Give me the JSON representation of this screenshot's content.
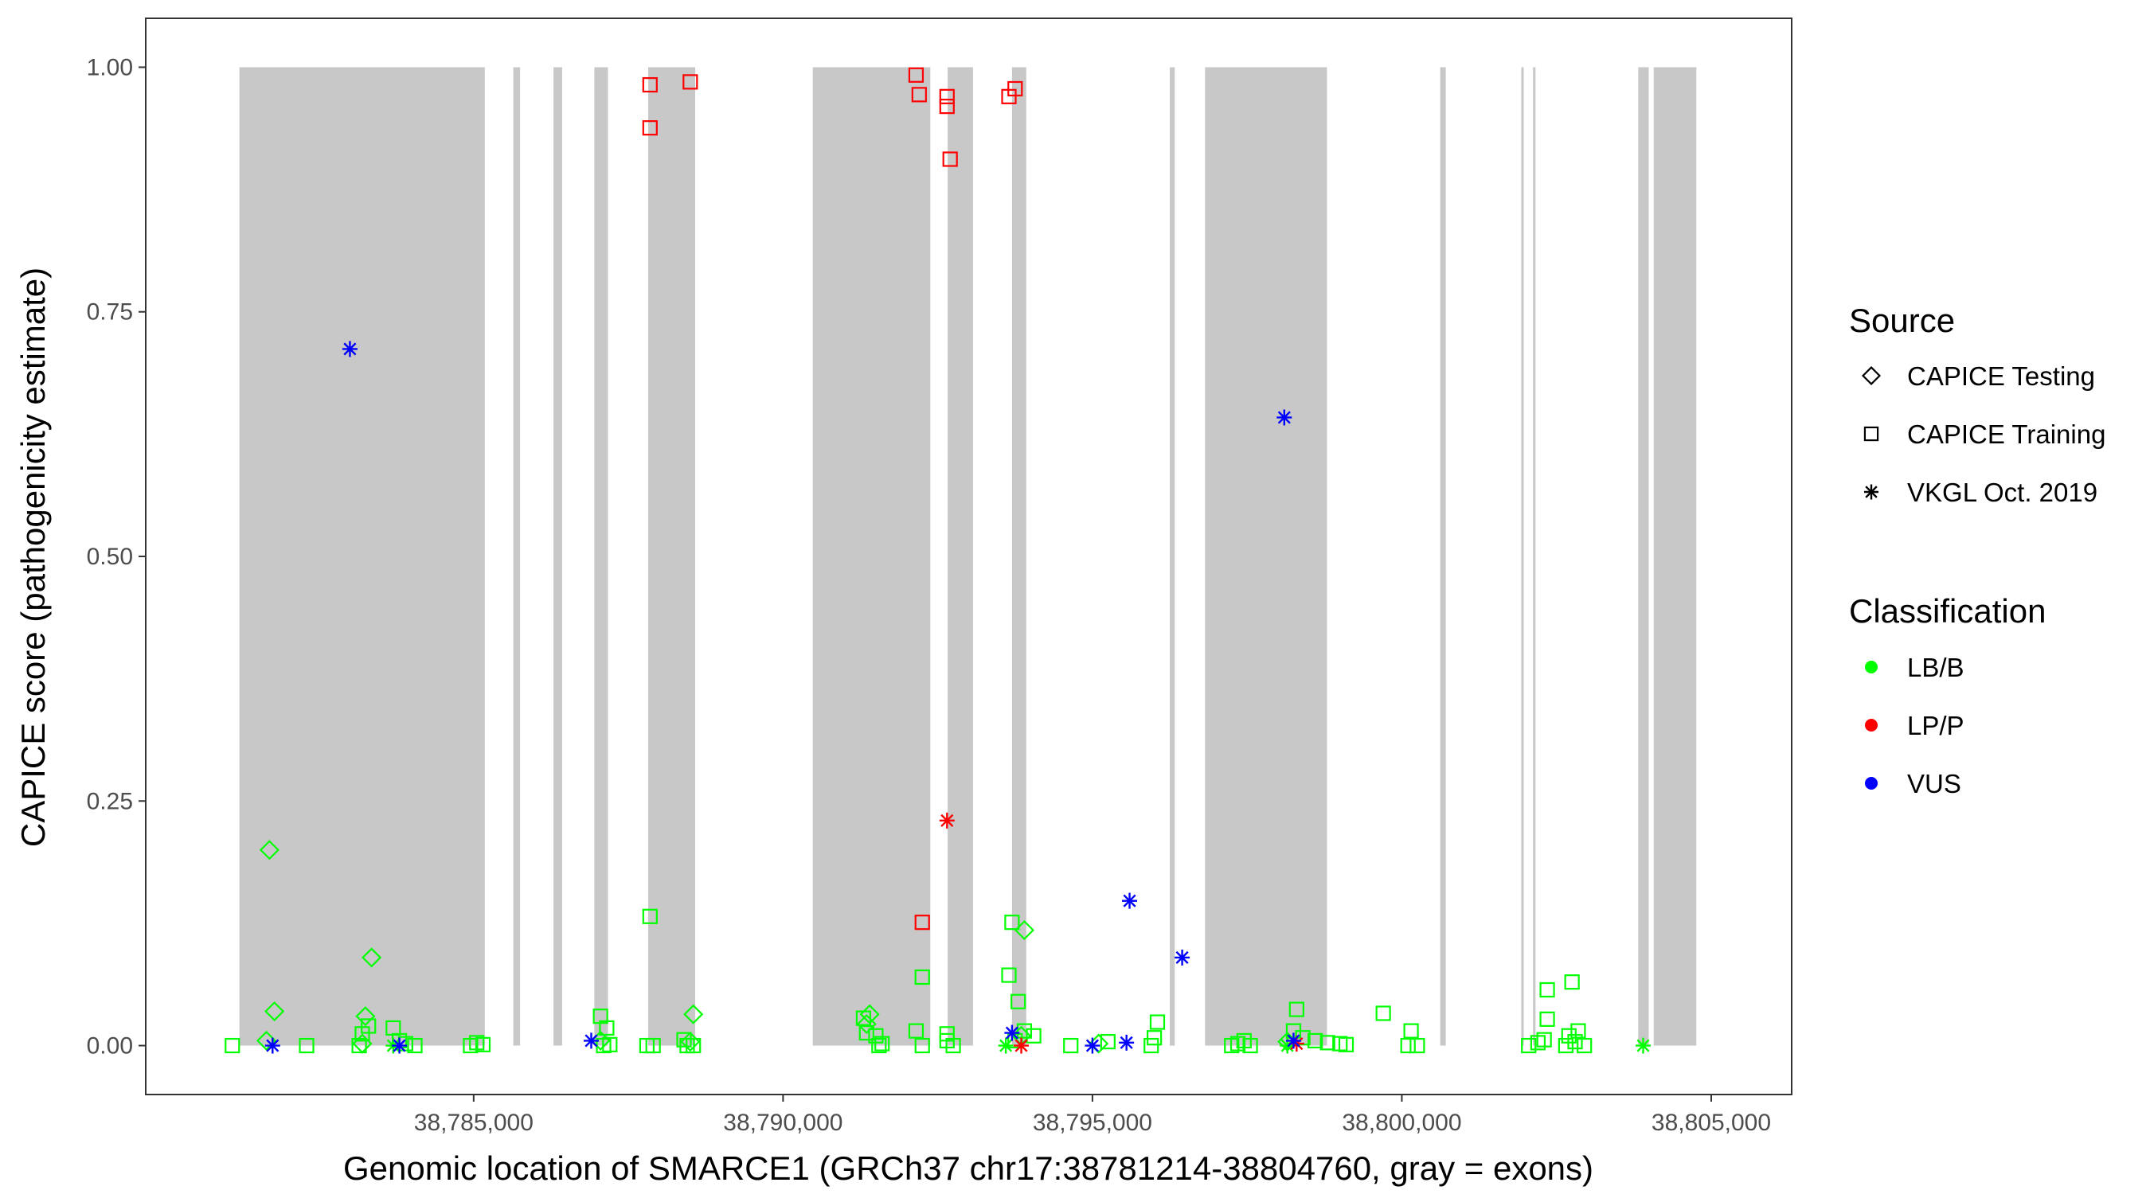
{
  "chart_data": {
    "type": "scatter",
    "xlabel": "Genomic location of SMARCE1 (GRCh37 chr17:38781214-38804760, gray = exons)",
    "ylabel": "CAPICE score (pathogenicity estimate)",
    "xlim": [
      38779700,
      38806300
    ],
    "ylim": [
      -0.05,
      1.05
    ],
    "x_ticks": [
      38785000,
      38790000,
      38795000,
      38800000,
      38805000
    ],
    "x_tick_labels": [
      "38,785,000",
      "38,790,000",
      "38,795,000",
      "38,800,000",
      "38,805,000"
    ],
    "y_ticks": [
      0,
      0.25,
      0.5,
      0.75,
      1.0
    ],
    "y_tick_labels": [
      "0.00",
      "0.25",
      "0.50",
      "0.75",
      "1.00"
    ],
    "grid": false,
    "exon_color": "#c8c8c8",
    "exons": [
      [
        38781214,
        38785180
      ],
      [
        38785640,
        38785750
      ],
      [
        38786290,
        38786430
      ],
      [
        38786950,
        38787170
      ],
      [
        38787820,
        38788580
      ],
      [
        38790480,
        38792380
      ],
      [
        38792660,
        38793070
      ],
      [
        38793700,
        38793930
      ],
      [
        38796250,
        38796330
      ],
      [
        38796820,
        38798790
      ],
      [
        38800620,
        38800710
      ],
      [
        38801930,
        38801970
      ],
      [
        38802120,
        38802160
      ],
      [
        38803820,
        38803990
      ],
      [
        38804070,
        38804760
      ]
    ],
    "legend_position": "right",
    "legend": {
      "source_title": "Source",
      "source_items": [
        {
          "label": "CAPICE Testing",
          "shape": "diamond"
        },
        {
          "label": "CAPICE Training",
          "shape": "square"
        },
        {
          "label": "VKGL Oct. 2019",
          "shape": "asterisk"
        }
      ],
      "class_title": "Classification",
      "class_items": [
        {
          "label": "LB/B",
          "color": "#00ff00"
        },
        {
          "label": "LP/P",
          "color": "#ff0000"
        },
        {
          "label": "VUS",
          "color": "#0000ff"
        }
      ]
    },
    "series": [
      {
        "name": "CAPICE Testing",
        "classification": "LB/B",
        "shape": "diamond",
        "color": "#00ff00",
        "points": [
          [
            38781700,
            0.2
          ],
          [
            38781780,
            0.035
          ],
          [
            38781650,
            0.005
          ],
          [
            38783250,
            0.03
          ],
          [
            38783350,
            0.09
          ],
          [
            38783200,
            0.002
          ],
          [
            38787050,
            0.005
          ],
          [
            38788550,
            0.032
          ],
          [
            38788500,
            0.004
          ],
          [
            38791400,
            0.032
          ],
          [
            38791350,
            0.022
          ],
          [
            38793900,
            0.118
          ],
          [
            38793850,
            0.01
          ],
          [
            38798150,
            0.004
          ],
          [
            38795100,
            0.002
          ]
        ]
      },
      {
        "name": "CAPICE Training",
        "classification": "LB/B",
        "shape": "square",
        "color": "#00ff00",
        "points": [
          [
            38781100,
            0.0
          ],
          [
            38782300,
            0.0
          ],
          [
            38783200,
            0.012
          ],
          [
            38783300,
            0.02
          ],
          [
            38783150,
            0.0
          ],
          [
            38783700,
            0.018
          ],
          [
            38783800,
            0.005
          ],
          [
            38783900,
            0.002
          ],
          [
            38784050,
            0.0
          ],
          [
            38785050,
            0.003
          ],
          [
            38784950,
            0.0
          ],
          [
            38785150,
            0.001
          ],
          [
            38787050,
            0.03
          ],
          [
            38787150,
            0.018
          ],
          [
            38787100,
            0.0
          ],
          [
            38787200,
            0.001
          ],
          [
            38787850,
            0.132
          ],
          [
            38787800,
            0.0
          ],
          [
            38787900,
            0.0
          ],
          [
            38788400,
            0.006
          ],
          [
            38788550,
            0.0
          ],
          [
            38788450,
            0.0
          ],
          [
            38791300,
            0.028
          ],
          [
            38791350,
            0.013
          ],
          [
            38791500,
            0.01
          ],
          [
            38791600,
            0.002
          ],
          [
            38791550,
            0.0
          ],
          [
            38792250,
            0.07
          ],
          [
            38792150,
            0.015
          ],
          [
            38792250,
            0.0
          ],
          [
            38792650,
            0.012
          ],
          [
            38792650,
            0.005
          ],
          [
            38792750,
            0.0
          ],
          [
            38793700,
            0.126
          ],
          [
            38793650,
            0.072
          ],
          [
            38793800,
            0.045
          ],
          [
            38793900,
            0.015
          ],
          [
            38793750,
            0.005
          ],
          [
            38794050,
            0.01
          ],
          [
            38794650,
            0.0
          ],
          [
            38795250,
            0.004
          ],
          [
            38796050,
            0.024
          ],
          [
            38796000,
            0.008
          ],
          [
            38795950,
            0.0
          ],
          [
            38797250,
            0.0
          ],
          [
            38797350,
            0.002
          ],
          [
            38797450,
            0.005
          ],
          [
            38797550,
            0.0
          ],
          [
            38798300,
            0.037
          ],
          [
            38798250,
            0.015
          ],
          [
            38798400,
            0.008
          ],
          [
            38798600,
            0.005
          ],
          [
            38798800,
            0.003
          ],
          [
            38799000,
            0.002
          ],
          [
            38799100,
            0.001
          ],
          [
            38799700,
            0.033
          ],
          [
            38800150,
            0.015
          ],
          [
            38800100,
            0.0
          ],
          [
            38800250,
            0.0
          ],
          [
            38802050,
            0.0
          ],
          [
            38802200,
            0.003
          ],
          [
            38802300,
            0.006
          ],
          [
            38802350,
            0.057
          ],
          [
            38802350,
            0.027
          ],
          [
            38802750,
            0.065
          ],
          [
            38802850,
            0.015
          ],
          [
            38802700,
            0.01
          ],
          [
            38802800,
            0.004
          ],
          [
            38802650,
            0.0
          ],
          [
            38802950,
            0.0
          ]
        ]
      },
      {
        "name": "CAPICE Training",
        "classification": "LP/P",
        "shape": "square",
        "color": "#ff0000",
        "points": [
          [
            38787850,
            0.982
          ],
          [
            38787850,
            0.938
          ],
          [
            38788500,
            0.985
          ],
          [
            38792150,
            0.992
          ],
          [
            38792200,
            0.972
          ],
          [
            38792650,
            0.97
          ],
          [
            38792650,
            0.96
          ],
          [
            38792700,
            0.906
          ],
          [
            38793650,
            0.97
          ],
          [
            38793750,
            0.978
          ],
          [
            38792250,
            0.126
          ]
        ]
      },
      {
        "name": "VKGL Oct. 2019",
        "classification": "LB/B",
        "shape": "asterisk",
        "color": "#00ff00",
        "points": [
          [
            38783700,
            0.0
          ],
          [
            38793600,
            0.0
          ],
          [
            38798150,
            0.0
          ],
          [
            38803900,
            0.0
          ]
        ]
      },
      {
        "name": "VKGL Oct. 2019",
        "classification": "LP/P",
        "shape": "asterisk",
        "color": "#ff0000",
        "points": [
          [
            38792650,
            0.23
          ],
          [
            38793850,
            0.0
          ],
          [
            38798300,
            0.002
          ]
        ]
      },
      {
        "name": "VKGL Oct. 2019",
        "classification": "VUS",
        "shape": "asterisk",
        "color": "#0000ff",
        "points": [
          [
            38783000,
            0.712
          ],
          [
            38781750,
            0.0
          ],
          [
            38783800,
            0.0
          ],
          [
            38786900,
            0.005
          ],
          [
            38793700,
            0.013
          ],
          [
            38795000,
            0.0
          ],
          [
            38795550,
            0.003
          ],
          [
            38795600,
            0.148
          ],
          [
            38796450,
            0.09
          ],
          [
            38798100,
            0.642
          ],
          [
            38798250,
            0.005
          ]
        ]
      }
    ]
  }
}
